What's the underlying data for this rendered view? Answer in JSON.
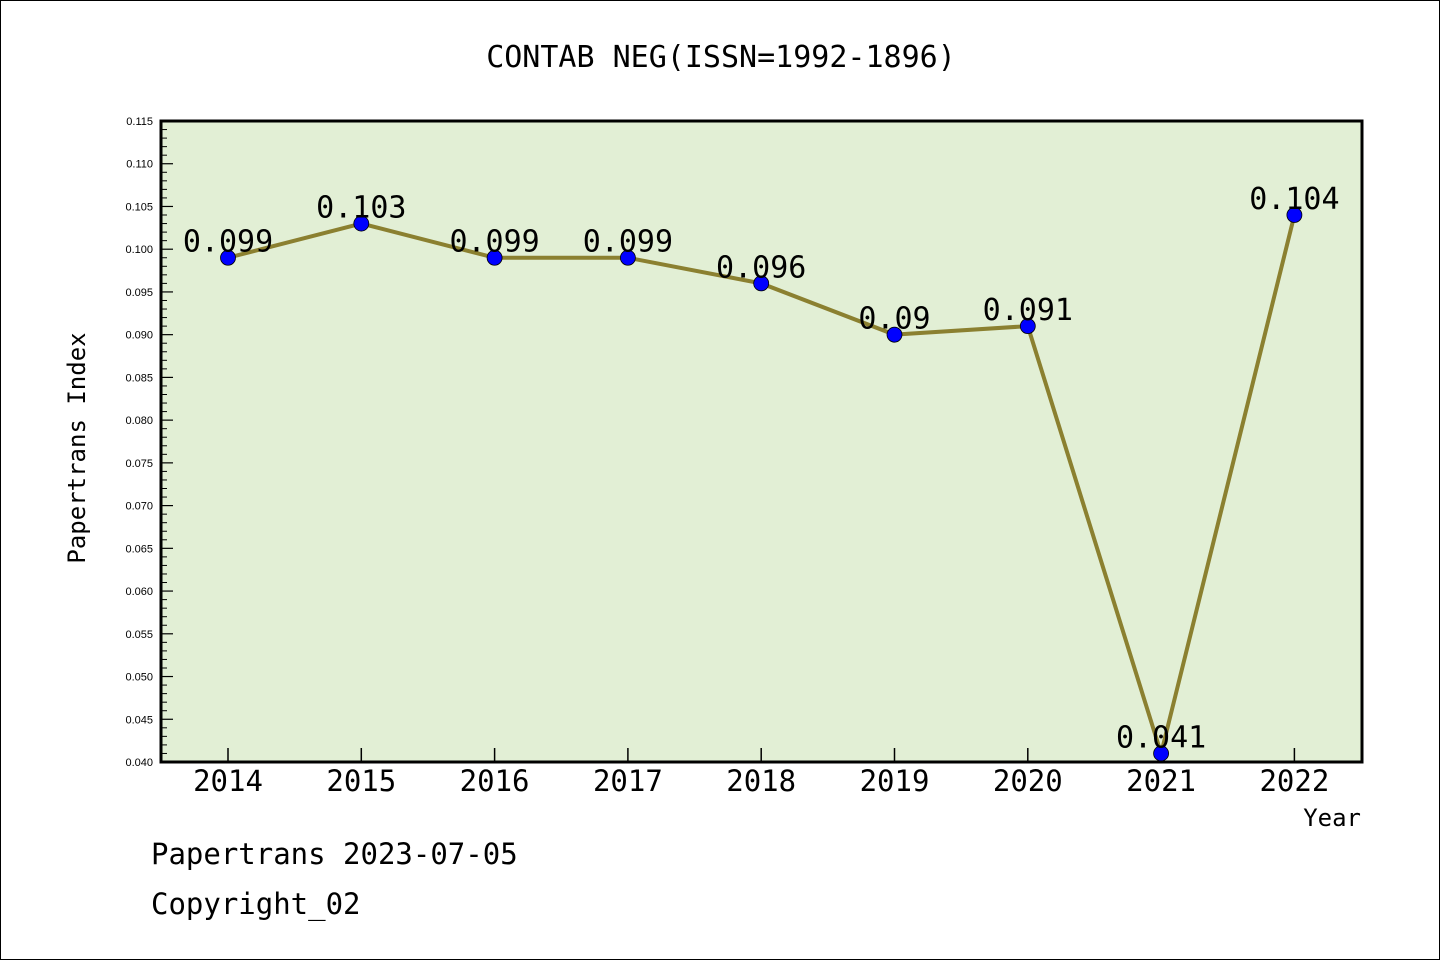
{
  "chart_data": {
    "type": "line",
    "title": "CONTAB NEG(ISSN=1992-1896)",
    "xlabel": "Year",
    "ylabel": "Papertrans Index",
    "categories": [
      "2014",
      "2015",
      "2016",
      "2017",
      "2018",
      "2019",
      "2020",
      "2021",
      "2022"
    ],
    "series": [
      {
        "values": [
          0.099,
          0.103,
          0.099,
          0.099,
          0.096,
          0.09,
          0.091,
          0.041,
          0.104
        ],
        "labels": [
          "0.099",
          "0.103",
          "0.099",
          "0.099",
          "0.096",
          "0.09",
          "0.091",
          "0.041",
          "0.104"
        ],
        "line_color": "#8b8030",
        "marker_color": "#0000ff"
      }
    ],
    "ylim": [
      0.04,
      0.115
    ],
    "yticks": [
      "0.040",
      "0.045",
      "0.050",
      "0.055",
      "0.060",
      "0.065",
      "0.070",
      "0.075",
      "0.080",
      "0.085",
      "0.090",
      "0.095",
      "0.100",
      "0.105",
      "0.110",
      "0.115"
    ],
    "plot_background": "#e2efd5",
    "grid": false,
    "legend": "none"
  },
  "footer": {
    "line1": "Papertrans 2023-07-05",
    "line2": "Copyright_02"
  }
}
